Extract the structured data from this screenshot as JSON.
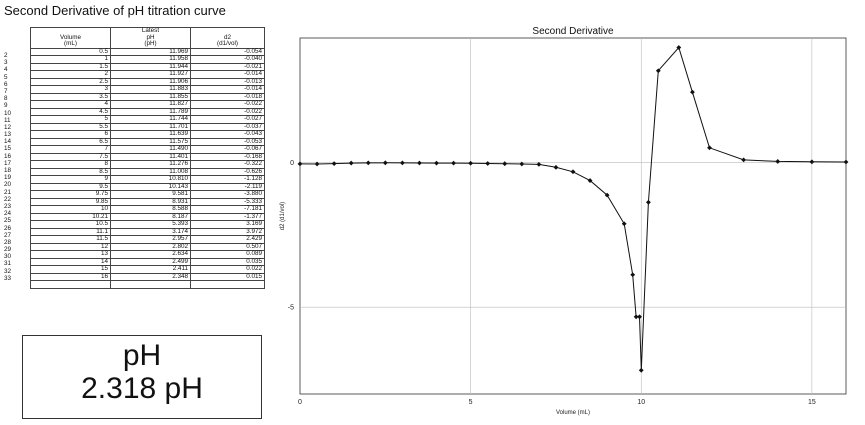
{
  "page_title": "Second Derivative of pH titration curve",
  "table": {
    "header_group": "Latest",
    "columns": [
      {
        "top": "Volume",
        "bottom": "(mL)"
      },
      {
        "top": "pH",
        "bottom": "(pH)"
      },
      {
        "top": "d2",
        "bottom": "(d1/vol)"
      }
    ],
    "row_numbers": [
      "2",
      "3",
      "4",
      "5",
      "6",
      "7",
      "8",
      "9",
      "10",
      "11",
      "12",
      "13",
      "14",
      "15",
      "16",
      "17",
      "18",
      "19",
      "20",
      "21",
      "22",
      "23",
      "24",
      "25",
      "26",
      "27",
      "28",
      "29",
      "30",
      "31",
      "32",
      "33"
    ],
    "rows": [
      [
        "0.5",
        "11.969",
        "-0.054"
      ],
      [
        "1",
        "11.958",
        "-0.040"
      ],
      [
        "1.5",
        "11.944",
        "-0.021"
      ],
      [
        "2",
        "11.927",
        "-0.014"
      ],
      [
        "2.5",
        "11.906",
        "-0.013"
      ],
      [
        "3",
        "11.883",
        "-0.014"
      ],
      [
        "3.5",
        "11.855",
        "-0.018"
      ],
      [
        "4",
        "11.827",
        "-0.022"
      ],
      [
        "4.5",
        "11.789",
        "-0.022"
      ],
      [
        "5",
        "11.744",
        "-0.027"
      ],
      [
        "5.5",
        "11.701",
        "-0.037"
      ],
      [
        "6",
        "11.639",
        "-0.043"
      ],
      [
        "6.5",
        "11.575",
        "-0.053"
      ],
      [
        "7",
        "11.490",
        "-0.067"
      ],
      [
        "7.5",
        "11.401",
        "-0.168"
      ],
      [
        "8",
        "11.276",
        "-0.322"
      ],
      [
        "8.5",
        "11.008",
        "-0.626"
      ],
      [
        "9",
        "10.810",
        "-1.128"
      ],
      [
        "9.5",
        "10.143",
        "-2.119"
      ],
      [
        "9.75",
        "9.581",
        "-3.880"
      ],
      [
        "9.85",
        "8.931",
        "-5.333"
      ],
      [
        "10",
        "8.588",
        "-7.181"
      ],
      [
        "10.21",
        "8.187",
        "-1.377"
      ],
      [
        "10.5",
        "5.393",
        "3.169"
      ],
      [
        "11.1",
        "3.174",
        "3.972"
      ],
      [
        "11.5",
        "2.957",
        "2.429"
      ],
      [
        "12",
        "2.802",
        "0.507"
      ],
      [
        "13",
        "2.634",
        "0.089"
      ],
      [
        "14",
        "2.499",
        "0.035"
      ],
      [
        "15",
        "2.411",
        "0.022"
      ],
      [
        "16",
        "2.348",
        "0.015"
      ],
      [
        "",
        "",
        ""
      ]
    ]
  },
  "meter": {
    "label": "pH",
    "value": "2.318 pH"
  },
  "chart_data": {
    "type": "line",
    "title": "Second Derivative",
    "xlabel": "Volume (mL)",
    "ylabel": "d2 (d1/vol)",
    "xlim": [
      0,
      16
    ],
    "ylim": [
      -8,
      4.3
    ],
    "xticks": [
      "0",
      "5",
      "10",
      "15"
    ],
    "yticks": [
      "0",
      "-5"
    ],
    "grid": true,
    "series": [
      {
        "x": [
          0,
          0.5,
          1,
          1.5,
          2,
          2.5,
          3,
          3.5,
          4,
          4.5,
          5,
          5.5,
          6,
          6.5,
          7,
          7.5,
          8,
          8.5,
          9,
          9.5,
          9.75,
          9.85,
          9.95,
          10,
          10.21,
          10.5,
          11.1,
          11.5,
          12,
          13,
          14,
          15,
          16
        ],
        "y": [
          -0.05,
          -0.054,
          -0.04,
          -0.021,
          -0.014,
          -0.013,
          -0.014,
          -0.018,
          -0.022,
          -0.022,
          -0.027,
          -0.037,
          -0.043,
          -0.053,
          -0.067,
          -0.168,
          -0.322,
          -0.626,
          -1.128,
          -2.119,
          -3.88,
          -5.333,
          -5.333,
          -7.181,
          -1.377,
          3.169,
          3.972,
          2.429,
          0.507,
          0.089,
          0.035,
          0.022,
          0.015
        ]
      }
    ]
  }
}
